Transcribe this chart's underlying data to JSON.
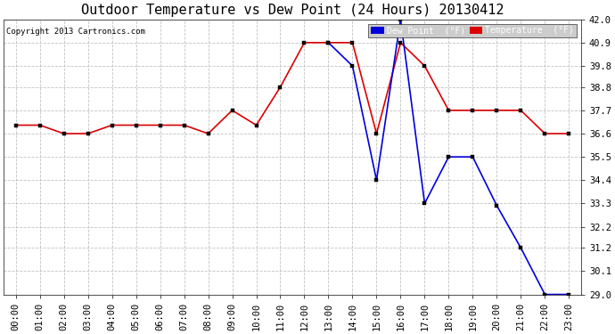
{
  "title": "Outdoor Temperature vs Dew Point (24 Hours) 20130412",
  "copyright": "Copyright 2013 Cartronics.com",
  "background_color": "#ffffff",
  "plot_bg_color": "#ffffff",
  "grid_color": "#bbbbbb",
  "hours": [
    "00:00",
    "01:00",
    "02:00",
    "03:00",
    "04:00",
    "05:00",
    "06:00",
    "07:00",
    "08:00",
    "09:00",
    "10:00",
    "11:00",
    "12:00",
    "13:00",
    "14:00",
    "15:00",
    "16:00",
    "17:00",
    "18:00",
    "19:00",
    "20:00",
    "21:00",
    "22:00",
    "23:00"
  ],
  "temperature": [
    37.0,
    37.0,
    36.6,
    36.6,
    37.0,
    37.0,
    37.0,
    37.0,
    36.6,
    37.7,
    37.0,
    38.8,
    40.9,
    40.9,
    40.9,
    36.6,
    40.9,
    39.8,
    37.7,
    37.7,
    37.7,
    37.7,
    36.6,
    36.6
  ],
  "dew_point": [
    null,
    null,
    null,
    null,
    null,
    null,
    null,
    null,
    null,
    null,
    null,
    null,
    null,
    40.9,
    39.8,
    34.4,
    42.0,
    33.3,
    35.5,
    35.5,
    33.2,
    31.2,
    29.0,
    29.0
  ],
  "temp_color": "#dd0000",
  "dew_color": "#0000dd",
  "marker": "s",
  "marker_size": 3,
  "ylim_min": 29.0,
  "ylim_max": 42.0,
  "yticks": [
    29.0,
    30.1,
    31.2,
    32.2,
    33.3,
    34.4,
    35.5,
    36.6,
    37.7,
    38.8,
    39.8,
    40.9,
    42.0
  ],
  "title_fontsize": 11,
  "tick_fontsize": 7.5,
  "legend_dew_color": "#0000dd",
  "legend_temp_color": "#dd0000",
  "legend_text_color": "#ffffff"
}
